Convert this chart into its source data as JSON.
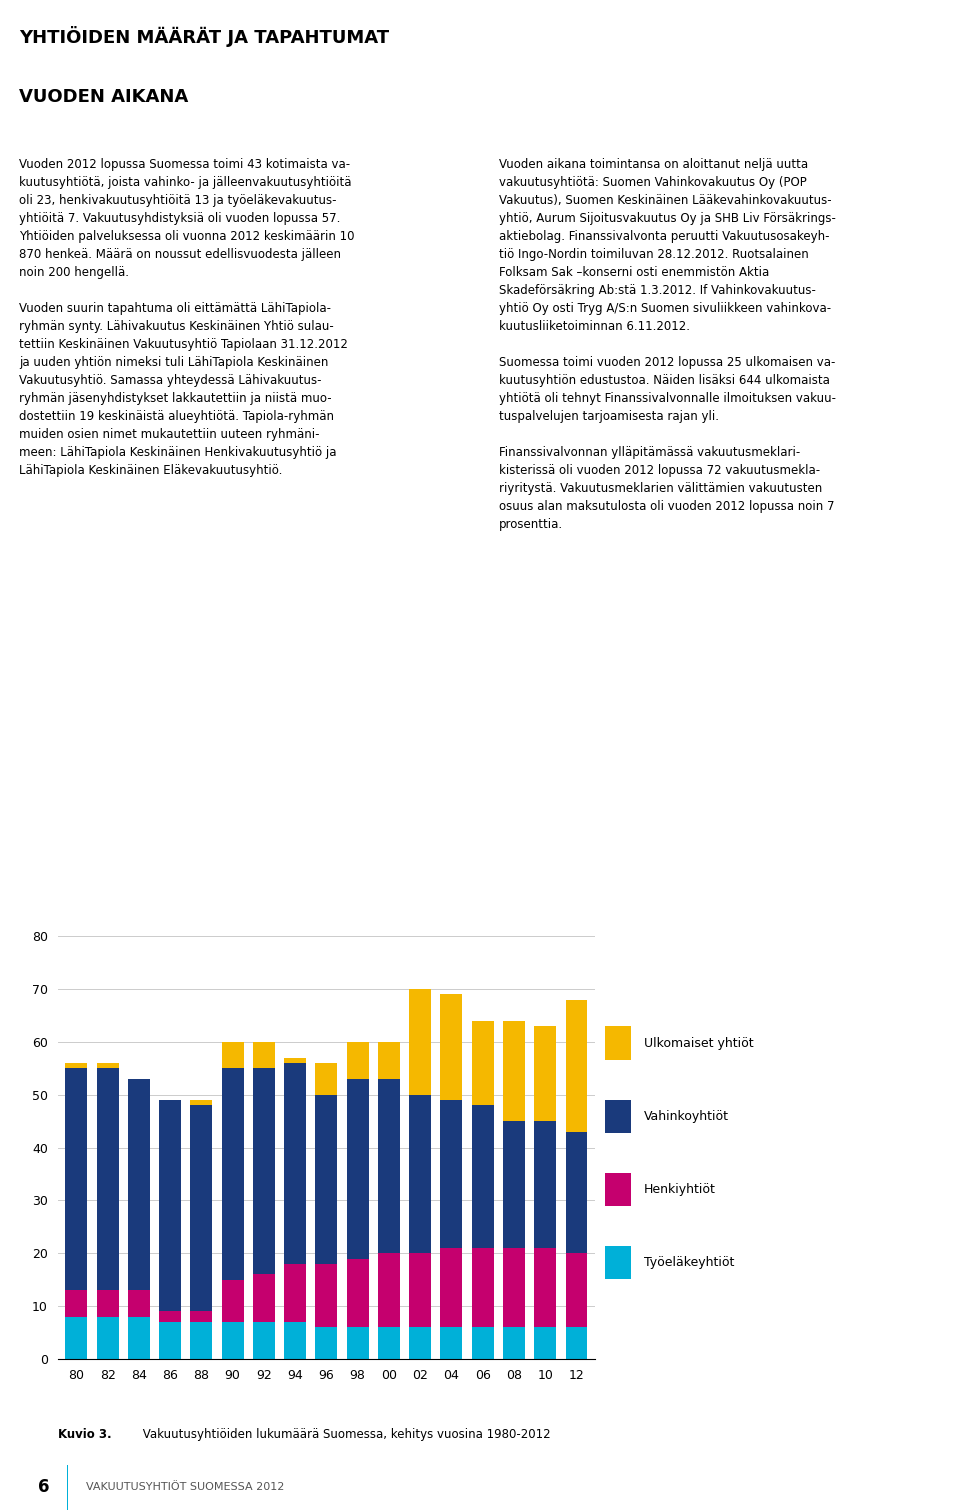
{
  "years": [
    "80",
    "82",
    "84",
    "86",
    "88",
    "90",
    "92",
    "94",
    "96",
    "98",
    "00",
    "02",
    "04",
    "06",
    "08",
    "10",
    "12"
  ],
  "tyoelake": [
    8,
    8,
    8,
    7,
    7,
    7,
    7,
    7,
    6,
    6,
    6,
    6,
    6,
    6,
    6,
    6,
    6
  ],
  "henki": [
    5,
    5,
    5,
    2,
    2,
    8,
    9,
    11,
    12,
    13,
    14,
    14,
    15,
    15,
    15,
    15,
    14
  ],
  "vahinko": [
    42,
    42,
    40,
    40,
    39,
    40,
    39,
    38,
    32,
    34,
    33,
    30,
    28,
    27,
    24,
    24,
    23
  ],
  "ulkomaiset": [
    1,
    1,
    0,
    0,
    1,
    5,
    5,
    1,
    6,
    7,
    7,
    20,
    20,
    16,
    19,
    18,
    25
  ],
  "color_tyoelake": "#00b0d8",
  "color_henki": "#c5006e",
  "color_vahinko": "#1a3a7c",
  "color_ulkomaiset": "#f5b800",
  "legend_labels": [
    "Ulkomaiset yhtiöt",
    "Vahinkoyhtiöt",
    "Henkiyhtiöt",
    "Työeläkeyhtiöt"
  ],
  "ylim": [
    0,
    80
  ],
  "yticks": [
    0,
    10,
    20,
    30,
    40,
    50,
    60,
    70,
    80
  ],
  "caption": "Kuvio 3. Vakuutusyhtiöiden lukumäärä Suomessa, kehitys vuosina 1980-2012",
  "caption_bold": "Kuvio 3.",
  "page_number": "6",
  "footer_text": "VAKUUTUSYHTIÖT SUOMESSA 2012",
  "title_line1": "YHTIÖIDEN MÄÄRÄT JA TAPAHTUMAT",
  "title_line2": "VUODEN AIKANA",
  "background_color": "#ffffff",
  "grid_color": "#cccccc",
  "bar_width": 0.7
}
